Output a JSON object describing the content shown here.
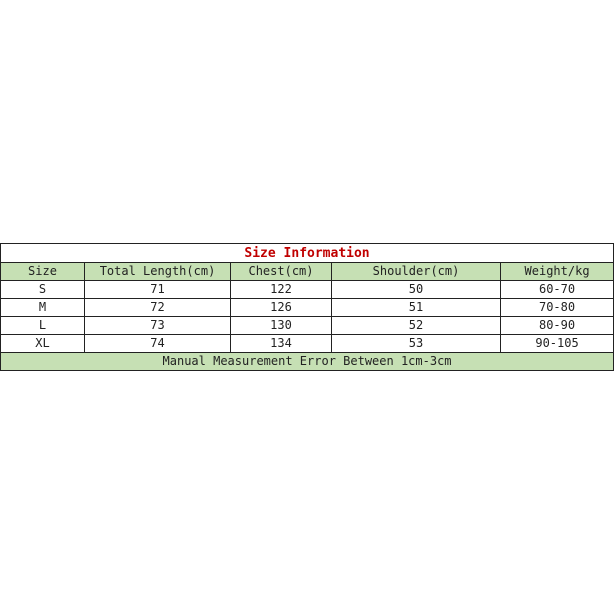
{
  "title": "Size Information",
  "colors": {
    "header_bg": "#c6e0b4",
    "title": "#c00000"
  },
  "columns": [
    "Size",
    "Total Length(cm)",
    "Chest(cm)",
    "Shoulder(cm)",
    "Weight/kg"
  ],
  "rows": [
    [
      "S",
      "71",
      "122",
      "50",
      "60-70"
    ],
    [
      "M",
      "72",
      "126",
      "51",
      "70-80"
    ],
    [
      "L",
      "73",
      "130",
      "52",
      "80-90"
    ],
    [
      "XL",
      "74",
      "134",
      "53",
      "90-105"
    ]
  ],
  "footer": "Manual Measurement Error Between 1cm-3cm"
}
